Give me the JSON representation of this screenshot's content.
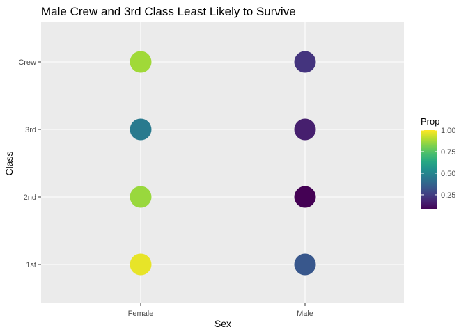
{
  "chart_data": {
    "type": "scatter",
    "title": "Male Crew and 3rd Class Least Likely to Survive",
    "xlabel": "Sex",
    "ylabel": "Class",
    "x_categories": [
      "Female",
      "Male"
    ],
    "y_categories": [
      "1st",
      "2nd",
      "3rd",
      "Crew"
    ],
    "points": [
      {
        "x": "Female",
        "y": "Crew",
        "prop": 0.87
      },
      {
        "x": "Male",
        "y": "Crew",
        "prop": 0.22
      },
      {
        "x": "Female",
        "y": "3rd",
        "prop": 0.46
      },
      {
        "x": "Male",
        "y": "3rd",
        "prop": 0.16
      },
      {
        "x": "Female",
        "y": "2nd",
        "prop": 0.86
      },
      {
        "x": "Male",
        "y": "2nd",
        "prop": 0.08
      },
      {
        "x": "Female",
        "y": "1st",
        "prop": 0.97
      },
      {
        "x": "Male",
        "y": "1st",
        "prop": 0.33
      }
    ],
    "legend": {
      "title": "Prop",
      "placement": "right",
      "ticks": [
        0.25,
        0.5,
        0.75,
        1.0
      ],
      "tick_labels": [
        "0.25",
        "0.50",
        "0.75",
        "1.00"
      ],
      "range": [
        0.08,
        1.0
      ]
    },
    "colormap": "viridis",
    "grid": true,
    "panel_background": "#ebebeb",
    "grid_color": "#ffffff"
  }
}
